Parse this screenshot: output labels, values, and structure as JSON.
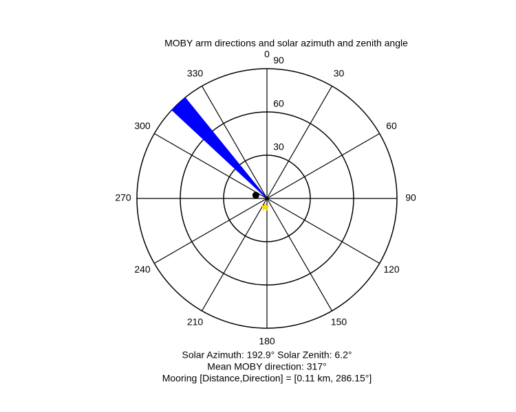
{
  "chart_data": {
    "type": "polar",
    "title": "MOBY arm directions and solar azimuth and zenith angle",
    "angle_ticks": [
      0,
      30,
      60,
      90,
      120,
      150,
      180,
      210,
      240,
      270,
      300,
      330
    ],
    "rlim": [
      0,
      90
    ],
    "rticks": [
      30,
      60,
      90
    ],
    "arm_wedge": {
      "from": 313,
      "to": 321,
      "r": 90,
      "color": "#0000ff"
    },
    "mooring_marker": {
      "direction": 286.15,
      "r": 8,
      "color": "#000000"
    },
    "sun_marker": {
      "azimuth": 192.9,
      "zenith": 6.2,
      "color": "#ffdd00"
    },
    "annotations": [
      "Solar Azimuth: 192.9°   Solar Zenith: 6.2°",
      "Mean MOBY direction: 317°",
      "Mooring [Distance,Direction] = [0.11 km, 286.15°]"
    ]
  }
}
